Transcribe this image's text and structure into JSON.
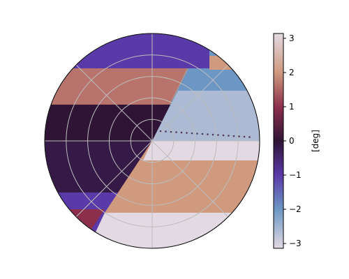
{
  "chart_data": {
    "type": "heatmap",
    "projection": "polar",
    "title": "",
    "grid": true,
    "radial_rings": 5,
    "angular_spokes": 8,
    "colormap": "twilight",
    "colors": {
      "c_pos_pi": "#e2d9e2",
      "c_pos_2": "#cf9a7e",
      "c_pos_1": "#8c2f4c",
      "c_zero": "#2f1436",
      "c_neg_1": "#5a39a8",
      "c_neg_2": "#6c96c4",
      "c_neg_pi": "#e2d9e2"
    },
    "colorbar": {
      "label": "[deg]",
      "range": [
        -3.14159,
        3.14159
      ],
      "ticks": [
        3,
        2,
        1,
        0,
        -1,
        -2,
        -3
      ],
      "tick_labels": [
        "3",
        "2",
        "1",
        "0",
        "−1",
        "−2",
        "−3"
      ]
    }
  }
}
